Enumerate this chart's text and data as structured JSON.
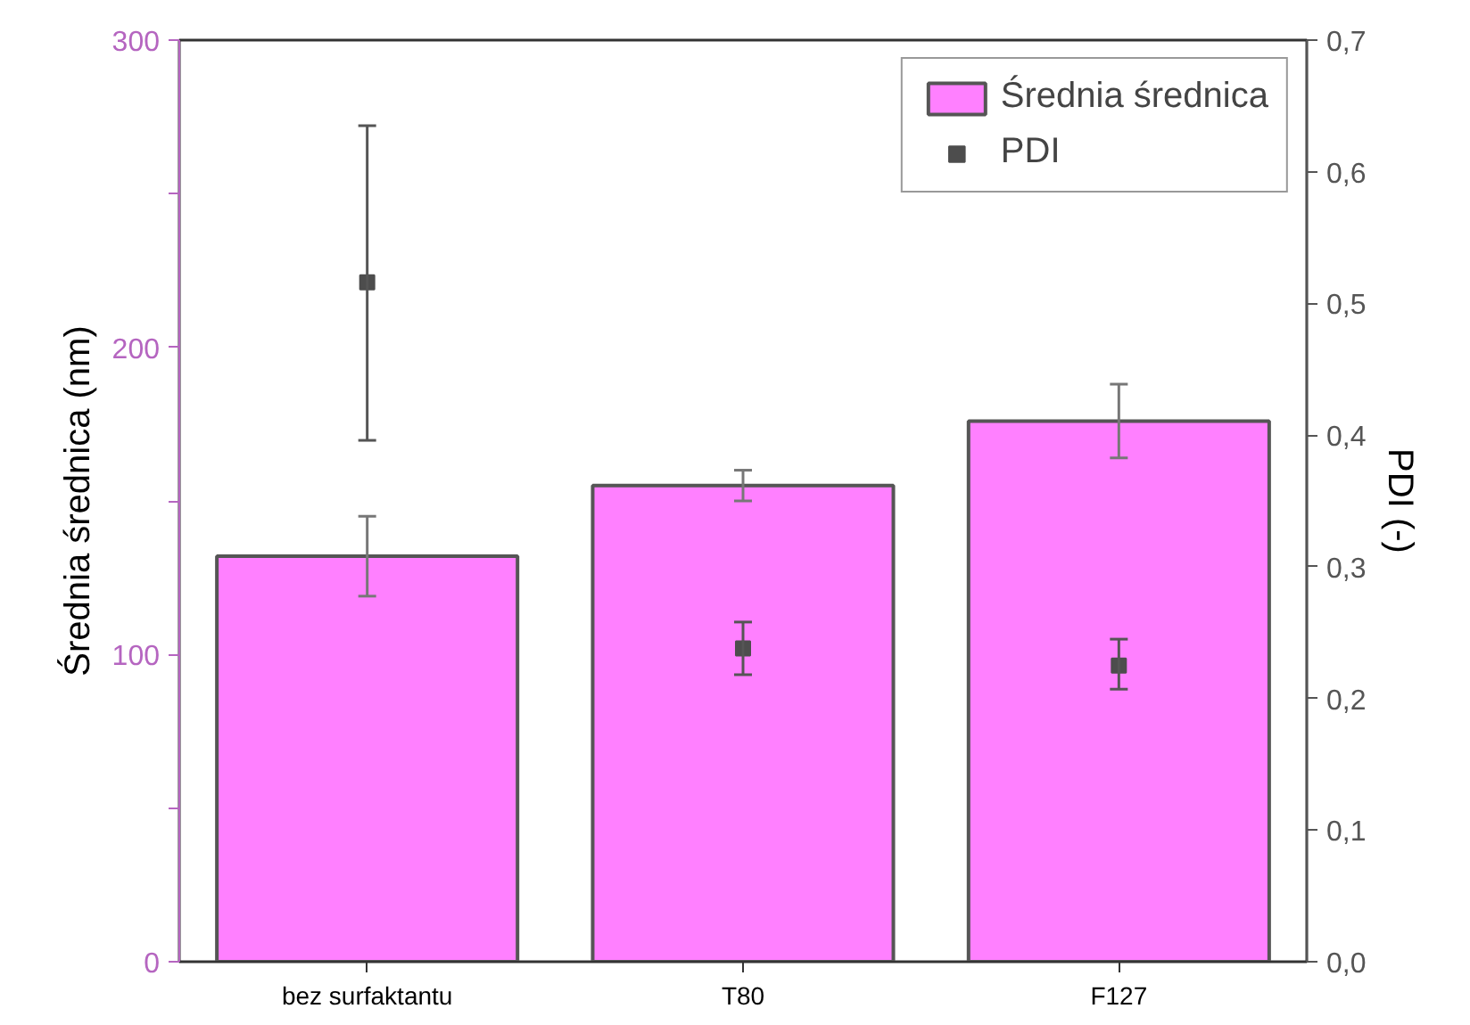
{
  "chart_data": {
    "type": "bar",
    "ylabel": "Średnia średnica (nm)",
    "y2label": "PDI (-)",
    "categories": [
      "bez surfaktantu",
      "T80",
      "F127"
    ],
    "series": [
      {
        "name": "Średnia średnica",
        "color": "#ff80ff",
        "values": [
          132,
          155,
          176
        ],
        "errors": [
          [
            119,
            145
          ],
          [
            150,
            160
          ],
          [
            164,
            188
          ]
        ]
      },
      {
        "name": "PDI",
        "type": "scatter",
        "axis": "y2",
        "color": "#4d4d4d",
        "values": [
          0.516,
          0.238,
          0.225
        ],
        "errors": [
          [
            0.396,
            0.635
          ],
          [
            0.218,
            0.258
          ],
          [
            0.207,
            0.245
          ]
        ]
      }
    ],
    "ylim": [
      0,
      300
    ],
    "yticks": [
      0,
      {
        "value": 50,
        "label": null
      },
      100,
      {
        "value": 150,
        "label": null
      },
      200,
      {
        "value": 250,
        "label": null
      },
      300
    ],
    "y2lim": [
      0,
      0.7
    ],
    "y2ticks": [
      {
        "value": 0,
        "label": "0,0"
      },
      {
        "value": 0.1,
        "label": "0,1"
      },
      {
        "value": 0.2,
        "label": "0,2"
      },
      {
        "value": 0.3,
        "label": "0,3"
      },
      {
        "value": 0.4,
        "label": "0,4"
      },
      {
        "value": 0.5,
        "label": "0,5"
      },
      {
        "value": 0.6,
        "label": "0,6"
      },
      {
        "value": 0.7,
        "label": "0,7"
      }
    ],
    "marker": "square",
    "grid": false,
    "legend": "top right"
  }
}
